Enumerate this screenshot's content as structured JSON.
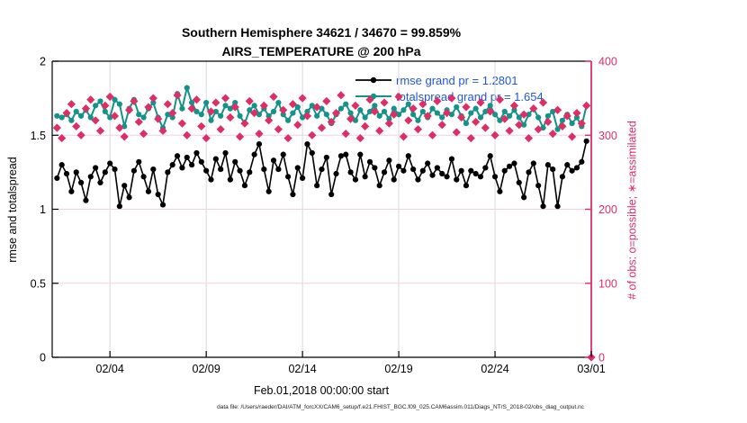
{
  "chart_data": {
    "type": "line",
    "title": "Southern Hemisphere 34621 / 34670 = 99.859%",
    "subtitle": "AIRS_TEMPERATURE @ 200 hPa",
    "xlabel": "Feb.01,2018 00:00:00 start",
    "x_axis": {
      "domain_days": [
        0,
        28
      ],
      "tick_days": [
        3,
        8,
        13,
        18,
        23,
        28
      ],
      "tick_labels": [
        "02/04",
        "02/09",
        "02/14",
        "02/19",
        "02/24",
        "03/01"
      ]
    },
    "left_axis": {
      "label": "rmse and totalspread",
      "min": 0,
      "max": 2,
      "ticks": [
        0,
        0.5,
        1,
        1.5,
        2
      ],
      "tick_labels": [
        "0",
        "0.5",
        "1",
        "1.5",
        "2"
      ],
      "color": "#000000"
    },
    "right_axis": {
      "label": "# of obs: o=possible; ∗=assimilated",
      "min": 0,
      "max": 400,
      "ticks": [
        0,
        100,
        200,
        300,
        400
      ],
      "tick_labels": [
        "0",
        "100",
        "200",
        "300",
        "400"
      ],
      "color": "#de2e66"
    },
    "stats": {
      "assimilated_total": 34621,
      "possible_total": 34670,
      "percent_assimilated": "99.859%",
      "rmse_grand_mean": 1.2801,
      "totalspread_grand_mean": 1.654
    },
    "style": {
      "grid_vertical_color": "#d9d9d9",
      "grid_horizontal_color": "#f6cfdb",
      "legend_text_color": "#2356d9",
      "axis_frame_color": "#000000",
      "background": "#ffffff"
    },
    "legend_position": "top-right-inside",
    "grid": true,
    "series": [
      {
        "name": "rmse",
        "legend_label": "rmse grand pr = 1.2801",
        "color": "#000000",
        "marker": "circle",
        "axis": "left",
        "t_start_day": 0.25,
        "t_step_day": 0.25,
        "values": [
          1.21,
          1.3,
          1.24,
          1.12,
          1.25,
          1.18,
          1.06,
          1.22,
          1.28,
          1.18,
          1.25,
          1.31,
          1.27,
          1.02,
          1.16,
          1.08,
          1.26,
          1.32,
          1.22,
          1.12,
          1.27,
          1.1,
          1.03,
          1.25,
          1.3,
          1.36,
          1.28,
          1.35,
          1.3,
          1.38,
          1.32,
          1.26,
          1.2,
          1.34,
          1.27,
          1.38,
          1.2,
          1.32,
          1.26,
          1.16,
          1.25,
          1.37,
          1.44,
          1.27,
          1.12,
          1.33,
          1.27,
          1.37,
          1.22,
          1.1,
          1.28,
          1.21,
          1.44,
          1.38,
          1.16,
          1.27,
          1.35,
          1.1,
          1.24,
          1.36,
          1.37,
          1.25,
          1.2,
          1.37,
          1.22,
          1.32,
          1.28,
          1.16,
          1.25,
          1.33,
          1.2,
          1.29,
          1.26,
          1.36,
          1.27,
          1.2,
          1.26,
          1.31,
          1.23,
          1.28,
          1.24,
          1.22,
          1.34,
          1.2,
          1.26,
          1.16,
          1.26,
          1.24,
          1.22,
          1.28,
          1.36,
          1.22,
          1.12,
          1.26,
          1.29,
          1.31,
          1.18,
          1.08,
          1.25,
          1.31,
          1.16,
          1.02,
          1.3,
          1.27,
          1.02,
          1.22,
          1.3,
          1.26,
          1.28,
          1.32,
          1.46
        ]
      },
      {
        "name": "totalspread",
        "legend_label": "totalspread grand pr = 1.654",
        "color": "#159289",
        "marker": "circle",
        "axis": "left",
        "t_start_day": 0.25,
        "t_step_day": 0.25,
        "values": [
          1.63,
          1.62,
          1.64,
          1.6,
          1.66,
          1.63,
          1.67,
          1.62,
          1.7,
          1.73,
          1.66,
          1.62,
          1.74,
          1.71,
          1.56,
          1.68,
          1.74,
          1.64,
          1.62,
          1.68,
          1.72,
          1.62,
          1.55,
          1.64,
          1.62,
          1.78,
          1.68,
          1.82,
          1.72,
          1.66,
          1.64,
          1.72,
          1.6,
          1.66,
          1.63,
          1.7,
          1.68,
          1.72,
          1.63,
          1.58,
          1.67,
          1.7,
          1.64,
          1.68,
          1.63,
          1.66,
          1.72,
          1.64,
          1.6,
          1.65,
          1.69,
          1.62,
          1.66,
          1.7,
          1.63,
          1.68,
          1.64,
          1.58,
          1.64,
          1.68,
          1.71,
          1.65,
          1.6,
          1.67,
          1.62,
          1.66,
          1.7,
          1.63,
          1.66,
          1.61,
          1.68,
          1.64,
          1.67,
          1.71,
          1.64,
          1.6,
          1.66,
          1.62,
          1.68,
          1.65,
          1.62,
          1.67,
          1.64,
          1.69,
          1.63,
          1.58,
          1.65,
          1.68,
          1.62,
          1.66,
          1.7,
          1.64,
          1.6,
          1.66,
          1.63,
          1.67,
          1.62,
          1.57,
          1.64,
          1.68,
          1.62,
          1.55,
          1.63,
          1.66,
          1.54,
          1.6,
          1.64,
          1.58,
          1.62,
          1.56,
          1.7
        ]
      },
      {
        "name": "obs_assimilated",
        "legend_label": "",
        "color": "#de2e66",
        "marker": "diamond",
        "axis": "right",
        "t_start_day": 0.25,
        "t_step_day": 0.25,
        "values": [
          310,
          296,
          330,
          342,
          312,
          300,
          336,
          348,
          320,
          306,
          340,
          352,
          326,
          310,
          298,
          334,
          346,
          318,
          302,
          338,
          350,
          322,
          306,
          342,
          330,
          354,
          316,
          300,
          336,
          348,
          312,
          296,
          332,
          344,
          308,
          350,
          324,
          338,
          298,
          316,
          346,
          330,
          302,
          340,
          320,
          352,
          308,
          334,
          296,
          342,
          314,
          350,
          326,
          300,
          338,
          310,
          346,
          318,
          330,
          354,
          302,
          322,
          340,
          296,
          312,
          348,
          332,
          306,
          344,
          316,
          328,
          352,
          298,
          320,
          336,
          308,
          342,
          326,
          300,
          346,
          314,
          330,
          350,
          304,
          324,
          338,
          296,
          318,
          344,
          310,
          332,
          300,
          348,
          322,
          306,
          340,
          314,
          328,
          296,
          336,
          308,
          344,
          318,
          302,
          334,
          312,
          326,
          298,
          330,
          316,
          340,
          0
        ]
      }
    ]
  },
  "footer": {
    "data_file": "data file: /Users/raeder/DAI/ATM_forcXX/CAM6_setup/f.e21.FHIST_BGC.f09_025.CAM6assim.011/Diags_NTrS_2018-02/obs_diag_output.nc"
  }
}
